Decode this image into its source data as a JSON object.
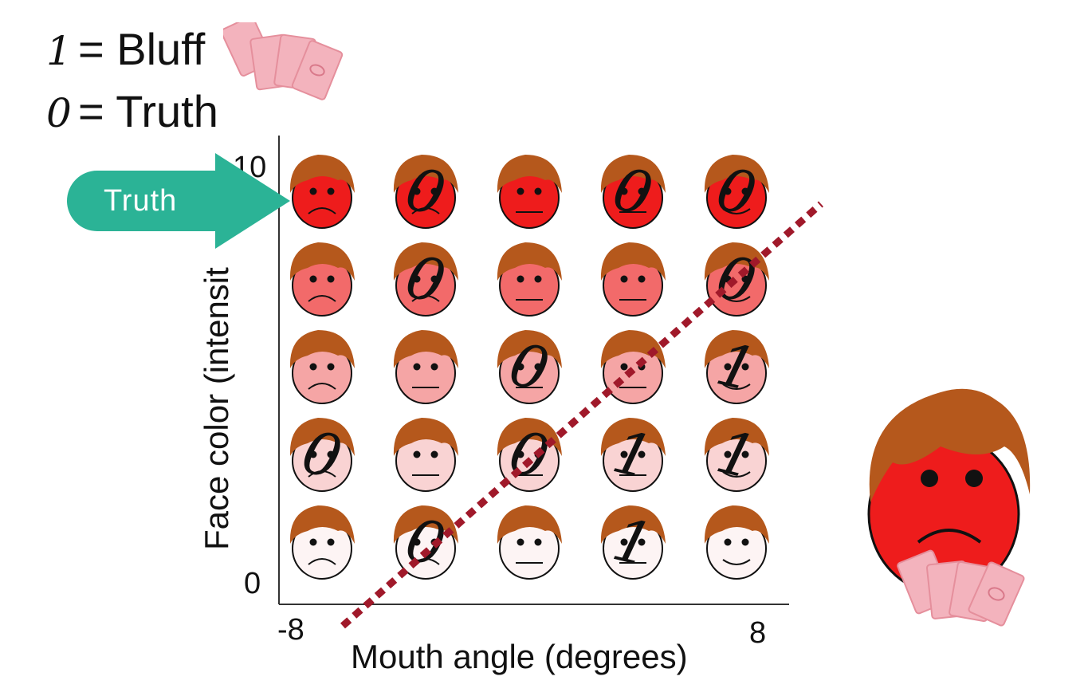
{
  "legend": {
    "bluff": {
      "digit": "1",
      "text": "= Bluff"
    },
    "truth": {
      "digit": "0",
      "text": "= Truth"
    }
  },
  "callout": {
    "label": "Truth",
    "color": "#2bb396"
  },
  "chart_data": {
    "type": "scatter",
    "xlabel": "Mouth angle (degrees)",
    "ylabel": "Face color (intensit",
    "x_ticks": [
      "-8",
      "8"
    ],
    "y_ticks": [
      "0",
      "10"
    ],
    "xlim": [
      -8,
      8
    ],
    "ylim": [
      0,
      10
    ],
    "grid_cols": 5,
    "grid_rows": 5,
    "cells": [
      [
        {
          "label": "",
          "mouth": "frown"
        },
        {
          "label": "0",
          "mouth": "frown"
        },
        {
          "label": "",
          "mouth": "flat"
        },
        {
          "label": "0",
          "mouth": "flat"
        },
        {
          "label": "0",
          "mouth": "smile"
        }
      ],
      [
        {
          "label": "",
          "mouth": "frown"
        },
        {
          "label": "0",
          "mouth": "frown"
        },
        {
          "label": "",
          "mouth": "flat"
        },
        {
          "label": "",
          "mouth": "flat"
        },
        {
          "label": "0",
          "mouth": "smile"
        }
      ],
      [
        {
          "label": "",
          "mouth": "frown"
        },
        {
          "label": "",
          "mouth": "flat"
        },
        {
          "label": "0",
          "mouth": "flat"
        },
        {
          "label": "",
          "mouth": "flat"
        },
        {
          "label": "1",
          "mouth": "smile"
        }
      ],
      [
        {
          "label": "0",
          "mouth": "frown"
        },
        {
          "label": "",
          "mouth": "flat"
        },
        {
          "label": "0",
          "mouth": "flat"
        },
        {
          "label": "1",
          "mouth": "flat"
        },
        {
          "label": "1",
          "mouth": "smile"
        }
      ],
      [
        {
          "label": "",
          "mouth": "frown"
        },
        {
          "label": "0",
          "mouth": "frown"
        },
        {
          "label": "",
          "mouth": "flat"
        },
        {
          "label": "1",
          "mouth": "flat"
        },
        {
          "label": "",
          "mouth": "smile"
        }
      ]
    ],
    "row_face_colors": [
      "#ee1c1c",
      "#f26a6a",
      "#f5a5a5",
      "#f9d3d3",
      "#fdf4f4"
    ],
    "decision_boundary": {
      "from": [
        -6,
        -0.5
      ],
      "to": [
        9,
        9.3
      ],
      "color": "#a0192a",
      "style": "dotted"
    }
  },
  "colors": {
    "hair": "#b5581c",
    "suspect_face": "#ee1c1c",
    "card": "#f3b3bd",
    "axis": "#333333"
  }
}
